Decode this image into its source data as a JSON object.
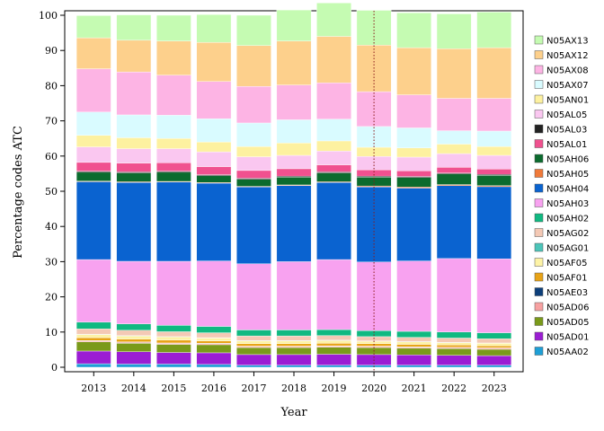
{
  "chart_data": {
    "type": "bar",
    "stacked": true,
    "title": "",
    "xlabel": "Year",
    "ylabel": "Percentage codes ATC",
    "ylim": [
      0,
      100
    ],
    "yticks": [
      0,
      10,
      20,
      30,
      40,
      50,
      60,
      70,
      80,
      90,
      100
    ],
    "grid": false,
    "legend_position": "right",
    "reference_line": {
      "x": "2020",
      "style": "dotted",
      "color": "#8b1a1a"
    },
    "categories": [
      "2013",
      "2014",
      "2015",
      "2016",
      "2017",
      "2018",
      "2019",
      "2020",
      "2021",
      "2022",
      "2023"
    ],
    "series": [
      {
        "name": "N05AA02",
        "color": "#1e9fd6",
        "values": [
          1.0,
          0.9,
          0.9,
          0.8,
          0.6,
          0.6,
          0.6,
          0.6,
          0.6,
          0.6,
          0.6
        ]
      },
      {
        "name": "N05AD01",
        "color": "#9b1dd3",
        "values": [
          3.6,
          3.5,
          3.3,
          3.3,
          3.0,
          3.0,
          3.1,
          3.0,
          2.9,
          2.8,
          2.7
        ]
      },
      {
        "name": "N05AD05",
        "color": "#7a9a1a",
        "values": [
          2.6,
          2.4,
          2.3,
          2.3,
          2.0,
          2.0,
          2.0,
          2.0,
          1.9,
          1.9,
          1.8
        ]
      },
      {
        "name": "N05AD06",
        "color": "#f7a1a1",
        "values": [
          0.3,
          0.3,
          0.3,
          0.3,
          0.3,
          0.3,
          0.3,
          0.3,
          0.3,
          0.3,
          0.3
        ]
      },
      {
        "name": "N05AE03",
        "color": "#0d3f7a",
        "values": [
          0.1,
          0.1,
          0.1,
          0.1,
          0.1,
          0.1,
          0.1,
          0.1,
          0.1,
          0.1,
          0.1
        ]
      },
      {
        "name": "N05AF01",
        "color": "#e8a317",
        "values": [
          0.8,
          0.8,
          0.8,
          0.7,
          0.7,
          0.7,
          0.7,
          0.7,
          0.7,
          0.6,
          0.6
        ]
      },
      {
        "name": "N05AF05",
        "color": "#fdf3a6",
        "values": [
          0.9,
          0.9,
          0.9,
          0.8,
          0.8,
          0.8,
          0.8,
          0.7,
          0.7,
          0.7,
          0.7
        ]
      },
      {
        "name": "N05AG01",
        "color": "#4cc5b9",
        "values": [
          0.1,
          0.1,
          0.1,
          0.1,
          0.1,
          0.1,
          0.1,
          0.1,
          0.1,
          0.1,
          0.1
        ]
      },
      {
        "name": "N05AG02",
        "color": "#f4c9b5",
        "values": [
          1.5,
          1.5,
          1.4,
          1.4,
          1.3,
          1.3,
          1.3,
          1.2,
          1.2,
          1.2,
          1.2
        ]
      },
      {
        "name": "N05AH02",
        "color": "#10b981",
        "values": [
          1.9,
          1.8,
          1.8,
          1.8,
          1.7,
          1.7,
          1.7,
          1.7,
          1.7,
          1.7,
          1.7
        ]
      },
      {
        "name": "N05AH03",
        "color": "#f8a2f0",
        "values": [
          17.8,
          17.8,
          18.2,
          18.6,
          18.8,
          19.4,
          19.9,
          19.5,
          20.0,
          20.9,
          21.0
        ]
      },
      {
        "name": "N05AH04",
        "color": "#0a63d0",
        "values": [
          22.1,
          22.4,
          22.5,
          22.1,
          21.8,
          21.6,
          21.9,
          21.3,
          20.7,
          20.7,
          20.5
        ]
      },
      {
        "name": "N05AH05",
        "color": "#f07a3a",
        "values": [
          0.2,
          0.2,
          0.2,
          0.2,
          0.2,
          0.2,
          0.2,
          0.3,
          0.3,
          0.3,
          0.3
        ]
      },
      {
        "name": "N05AH06",
        "color": "#0b6b2e",
        "values": [
          2.5,
          2.5,
          2.6,
          1.9,
          2.0,
          2.2,
          2.5,
          2.5,
          2.7,
          3.0,
          2.9
        ]
      },
      {
        "name": "N05AL03",
        "color": "#222222",
        "values": [
          0.3,
          0.3,
          0.3,
          0.3,
          0.3,
          0.3,
          0.3,
          0.3,
          0.3,
          0.3,
          0.3
        ]
      },
      {
        "name": "N05AL01",
        "color": "#f0518f",
        "values": [
          2.5,
          2.5,
          2.4,
          2.3,
          2.2,
          2.1,
          2.0,
          1.8,
          1.6,
          1.6,
          1.5
        ]
      },
      {
        "name": "N05AL05",
        "color": "#fac7f0",
        "values": [
          4.4,
          4.1,
          4.0,
          4.2,
          3.9,
          3.8,
          3.9,
          3.8,
          3.9,
          3.9,
          3.9
        ]
      },
      {
        "name": "N05AN01",
        "color": "#fdf1a0",
        "values": [
          3.3,
          3.1,
          2.9,
          2.8,
          2.9,
          3.5,
          2.9,
          2.6,
          2.6,
          2.7,
          2.5
        ]
      },
      {
        "name": "N05AX07",
        "color": "#d9fbff",
        "values": [
          6.6,
          6.5,
          6.6,
          6.6,
          6.7,
          6.6,
          6.2,
          5.9,
          5.7,
          3.8,
          4.4
        ]
      },
      {
        "name": "N05AX08",
        "color": "#fdb4e4",
        "values": [
          12.3,
          12.2,
          11.4,
          10.6,
          10.4,
          9.9,
          10.3,
          9.9,
          9.4,
          9.2,
          9.3
        ]
      },
      {
        "name": "N05AX12",
        "color": "#fdd08c",
        "values": [
          8.8,
          9.0,
          9.7,
          11.1,
          11.6,
          12.5,
          13.2,
          13.2,
          13.4,
          14.1,
          14.4
        ]
      },
      {
        "name": "N05AX13",
        "color": "#c5fbb2",
        "values": [
          6.3,
          7.2,
          7.3,
          7.9,
          8.6,
          8.8,
          9.5,
          9.9,
          9.9,
          9.9,
          10.1
        ]
      }
    ],
    "legend_order": [
      "N05AX13",
      "N05AX12",
      "N05AX08",
      "N05AX07",
      "N05AN01",
      "N05AL05",
      "N05AL03",
      "N05AL01",
      "N05AH06",
      "N05AH05",
      "N05AH04",
      "N05AH03",
      "N05AH02",
      "N05AG02",
      "N05AG01",
      "N05AF05",
      "N05AF01",
      "N05AE03",
      "N05AD06",
      "N05AD05",
      "N05AD01",
      "N05AA02"
    ]
  }
}
